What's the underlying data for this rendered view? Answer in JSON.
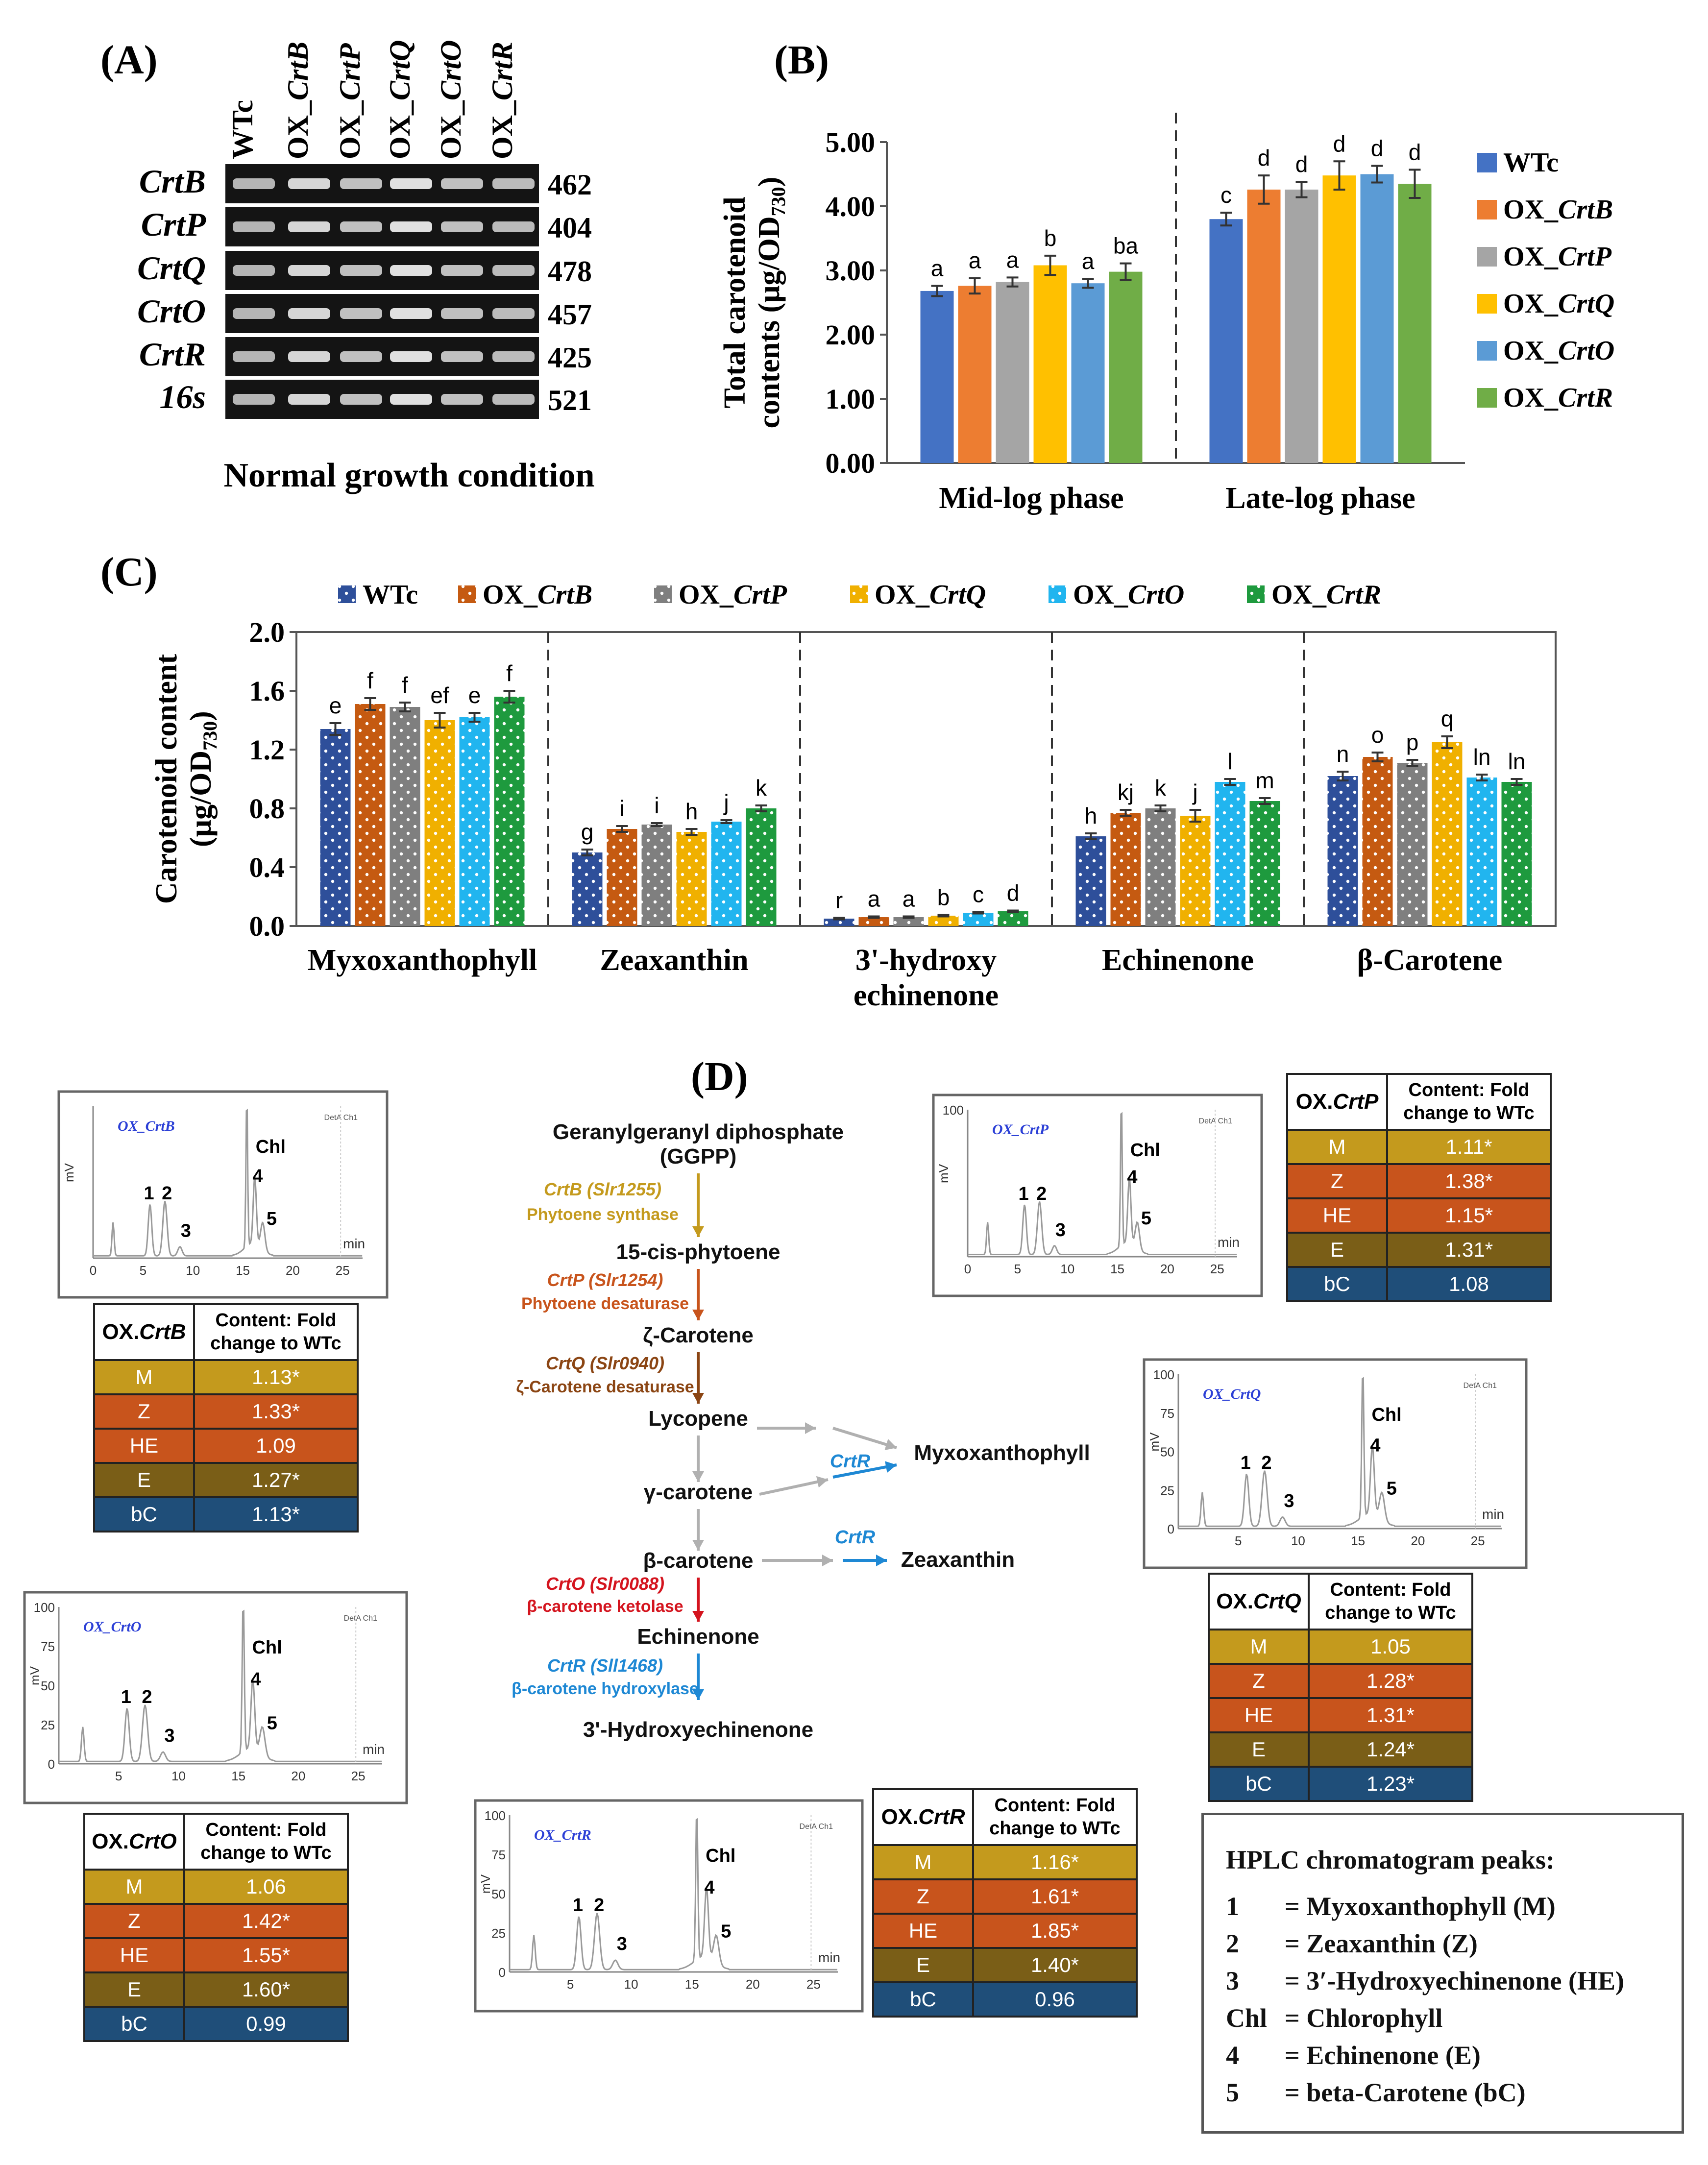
{
  "panel_labels": {
    "a": "(A)",
    "b": "(B)",
    "c": "(C)",
    "d": "(D)"
  },
  "colors": {
    "WTc": "#4472C4",
    "OX_CrtB": "#ED7D31",
    "OX_CrtP": "#A5A5A5",
    "OX_CrtQ": "#FFC000",
    "OX_CrtO": "#5B9BD5",
    "OX_CrtR": "#70AD47",
    "c_WTc": "#2E4F9A",
    "c_OX_CrtB": "#C55A11",
    "c_OX_CrtP": "#7F7F7F",
    "c_OX_CrtQ": "#F0B000",
    "c_OX_CrtO": "#21B5EF",
    "c_OX_CrtR": "#1E9A3E",
    "row_M": "#C49A1D",
    "row_Z": "#C8541C",
    "row_HE": "#C8541C",
    "row_E": "#7A5E17",
    "row_bC": "#1F4E79"
  },
  "panel_a": {
    "lane_labels": [
      {
        "prefix": "WTc",
        "gene": ""
      },
      {
        "prefix": "OX_",
        "gene": "CrtB"
      },
      {
        "prefix": "OX_",
        "gene": "CrtP"
      },
      {
        "prefix": "OX_",
        "gene": "CrtQ"
      },
      {
        "prefix": "OX_",
        "gene": "CrtO"
      },
      {
        "prefix": "OX_",
        "gene": "CrtR"
      }
    ],
    "genes": [
      {
        "name": "CrtB",
        "size": "462"
      },
      {
        "name": "CrtP",
        "size": "404"
      },
      {
        "name": "CrtQ",
        "size": "478"
      },
      {
        "name": "CrtO",
        "size": "457"
      },
      {
        "name": "CrtR",
        "size": "425"
      },
      {
        "name": "16s",
        "size": "521"
      }
    ],
    "caption": "Normal growth condition"
  },
  "legend_series": [
    {
      "key": "WTc",
      "prefix": "WTc",
      "gene": ""
    },
    {
      "key": "OX_CrtB",
      "prefix": "OX_",
      "gene": "CrtB"
    },
    {
      "key": "OX_CrtP",
      "prefix": "OX_",
      "gene": "CrtP"
    },
    {
      "key": "OX_CrtQ",
      "prefix": "OX_",
      "gene": "CrtQ"
    },
    {
      "key": "OX_CrtO",
      "prefix": "OX_",
      "gene": "CrtO"
    },
    {
      "key": "OX_CrtR",
      "prefix": "OX_",
      "gene": "CrtR"
    }
  ],
  "chart_data": [
    {
      "id": "B",
      "type": "bar",
      "ylabel_line1": "Total carotenoid",
      "ylabel_line2": "contents (μg/OD",
      "ylabel_sub": "730",
      "ylabel_end": ")",
      "ylim": [
        0,
        5
      ],
      "yticks": [
        "0.00",
        "1.00",
        "2.00",
        "3.00",
        "4.00",
        "5.00"
      ],
      "categories": [
        "Mid-log phase",
        "Late-log phase"
      ],
      "series": [
        {
          "name": "WTc",
          "values": [
            2.68,
            3.8
          ],
          "errors": [
            0.08,
            0.1
          ],
          "letters": [
            "a",
            "c"
          ]
        },
        {
          "name": "OX_CrtB",
          "values": [
            2.76,
            4.26
          ],
          "errors": [
            0.12,
            0.22
          ],
          "letters": [
            "a",
            "d"
          ]
        },
        {
          "name": "OX_CrtP",
          "values": [
            2.82,
            4.26
          ],
          "errors": [
            0.07,
            0.12
          ],
          "letters": [
            "a",
            "d"
          ]
        },
        {
          "name": "OX_CrtQ",
          "values": [
            3.08,
            4.48
          ],
          "errors": [
            0.15,
            0.22
          ],
          "letters": [
            "b",
            "d"
          ]
        },
        {
          "name": "OX_CrtO",
          "values": [
            2.8,
            4.5
          ],
          "errors": [
            0.07,
            0.13
          ],
          "letters": [
            "a",
            "d"
          ]
        },
        {
          "name": "OX_CrtR",
          "values": [
            2.98,
            4.35
          ],
          "errors": [
            0.13,
            0.22
          ],
          "letters": [
            "ba",
            "d"
          ]
        }
      ]
    },
    {
      "id": "C",
      "type": "bar",
      "ylabel_line1": "Carotenoid content",
      "ylabel_line2": "(μg/OD",
      "ylabel_sub": "730",
      "ylabel_end": ")",
      "ylim": [
        0,
        2
      ],
      "yticks": [
        "0.0",
        "0.4",
        "0.8",
        "1.2",
        "1.6",
        "2.0"
      ],
      "categories": [
        "Myxoxanthophyll",
        "Zeaxanthin",
        "3'-hydroxy echinenone",
        "Echinenone",
        "β-Carotene"
      ],
      "series": [
        {
          "name": "WTc",
          "values": [
            1.34,
            0.5,
            0.05,
            0.61,
            1.02
          ],
          "errors": [
            0.04,
            0.02,
            0.005,
            0.02,
            0.03
          ],
          "letters": [
            "e",
            "g",
            "r",
            "h",
            "n"
          ]
        },
        {
          "name": "OX_CrtB",
          "values": [
            1.51,
            0.66,
            0.06,
            0.77,
            1.15
          ],
          "errors": [
            0.04,
            0.02,
            0.005,
            0.02,
            0.03
          ],
          "letters": [
            "f",
            "i",
            "a",
            "kj",
            "o"
          ]
        },
        {
          "name": "OX_CrtP",
          "values": [
            1.49,
            0.69,
            0.06,
            0.8,
            1.11
          ],
          "errors": [
            0.03,
            0.01,
            0.005,
            0.02,
            0.02
          ],
          "letters": [
            "f",
            "i",
            "a",
            "k",
            "p"
          ]
        },
        {
          "name": "OX_CrtQ",
          "values": [
            1.4,
            0.64,
            0.07,
            0.75,
            1.25
          ],
          "errors": [
            0.05,
            0.02,
            0.005,
            0.04,
            0.04
          ],
          "letters": [
            "ef",
            "h",
            "b",
            "j",
            "q"
          ]
        },
        {
          "name": "OX_CrtO",
          "values": [
            1.42,
            0.71,
            0.09,
            0.98,
            1.01
          ],
          "errors": [
            0.03,
            0.01,
            0.005,
            0.02,
            0.02
          ],
          "letters": [
            "e",
            "j",
            "c",
            "l",
            "ln"
          ]
        },
        {
          "name": "OX_CrtR",
          "values": [
            1.56,
            0.8,
            0.1,
            0.85,
            0.98
          ],
          "errors": [
            0.04,
            0.02,
            0.005,
            0.02,
            0.02
          ],
          "letters": [
            "f",
            "k",
            "d",
            "m",
            "ln"
          ]
        }
      ]
    }
  ],
  "panel_d": {
    "pathway": [
      {
        "id": "ggpp1",
        "text": "Geranylgeranyl diphosphate"
      },
      {
        "id": "ggpp2",
        "text": "(GGPP)"
      },
      {
        "id": "e1a",
        "text": "CrtB (Slr1255)"
      },
      {
        "id": "e1b",
        "text": "Phytoene synthase"
      },
      {
        "id": "p1",
        "text": "15-cis-phytoene"
      },
      {
        "id": "e2a",
        "text": "CrtP (Slr1254)"
      },
      {
        "id": "e2b",
        "text": "Phytoene desaturase"
      },
      {
        "id": "p2",
        "text": "ζ-Carotene"
      },
      {
        "id": "e3a",
        "text": "CrtQ (Slr0940)"
      },
      {
        "id": "e3b",
        "text": "ζ-Carotene desaturase"
      },
      {
        "id": "p3",
        "text": "Lycopene"
      },
      {
        "id": "p4",
        "text": "γ-carotene"
      },
      {
        "id": "p5",
        "text": "β-carotene"
      },
      {
        "id": "myxo",
        "text": "Myxoxanthophyll"
      },
      {
        "id": "zea",
        "text": "Zeaxanthin"
      },
      {
        "id": "crtr1",
        "text": "CrtR"
      },
      {
        "id": "crtr2",
        "text": "CrtR"
      },
      {
        "id": "e4a",
        "text": "CrtO (Slr0088)"
      },
      {
        "id": "e4b",
        "text": "β-carotene ketolase"
      },
      {
        "id": "p6",
        "text": "Echinenone"
      },
      {
        "id": "e5a",
        "text": "CrtR (Sll1468)"
      },
      {
        "id": "e5b",
        "text": "β-carotene hydroxylase"
      },
      {
        "id": "p7",
        "text": "3'-Hydroxyechinenone"
      }
    ],
    "chrom_common": {
      "chl": "Chl",
      "detector": "DetA Ch1",
      "unit_y": "mV",
      "unit_x": "min",
      "peaks": [
        "1",
        "2",
        "3",
        "4",
        "5"
      ]
    },
    "chromatograms": [
      {
        "id": "crtB",
        "label": "OX_CrtB",
        "yticks": [],
        "xticks": [
          "0",
          "5",
          "10",
          "15",
          "20",
          "25"
        ]
      },
      {
        "id": "crtP",
        "label": "OX_CrtP",
        "yticks": [
          "100"
        ],
        "xticks": [
          "0",
          "5",
          "10",
          "15",
          "20",
          "25"
        ]
      },
      {
        "id": "crtQ",
        "label": "OX_CrtQ",
        "yticks": [
          "100",
          "75",
          "50",
          "25",
          "0"
        ],
        "xticks": [
          "5",
          "10",
          "15",
          "20",
          "25"
        ]
      },
      {
        "id": "crtO",
        "label": "OX_CrtO",
        "yticks": [
          "100",
          "75",
          "50",
          "25",
          "0"
        ],
        "xticks": [
          "5",
          "10",
          "15",
          "20",
          "25"
        ]
      },
      {
        "id": "crtR",
        "label": "OX_CrtR",
        "yticks": [
          "100",
          "75",
          "50",
          "25",
          "0"
        ],
        "xticks": [
          "5",
          "10",
          "15",
          "20",
          "25"
        ]
      }
    ],
    "table_header": "Content: Fold change to WTc",
    "tables": {
      "crtB": {
        "name_prefix": "OX.",
        "name_gene": "CrtB",
        "rows": [
          {
            "k": "M",
            "v": "1.13*"
          },
          {
            "k": "Z",
            "v": "1.33*"
          },
          {
            "k": "HE",
            "v": "1.09"
          },
          {
            "k": "E",
            "v": "1.27*"
          },
          {
            "k": "bC",
            "v": "1.13*"
          }
        ]
      },
      "crtP": {
        "name_prefix": "OX.",
        "name_gene": "CrtP",
        "rows": [
          {
            "k": "M",
            "v": "1.11*"
          },
          {
            "k": "Z",
            "v": "1.38*"
          },
          {
            "k": "HE",
            "v": "1.15*"
          },
          {
            "k": "E",
            "v": "1.31*"
          },
          {
            "k": "bC",
            "v": "1.08"
          }
        ]
      },
      "crtQ": {
        "name_prefix": "OX.",
        "name_gene": "CrtQ",
        "rows": [
          {
            "k": "M",
            "v": "1.05"
          },
          {
            "k": "Z",
            "v": "1.28*"
          },
          {
            "k": "HE",
            "v": "1.31*"
          },
          {
            "k": "E",
            "v": "1.24*"
          },
          {
            "k": "bC",
            "v": "1.23*"
          }
        ]
      },
      "crtO": {
        "name_prefix": "OX.",
        "name_gene": "CrtO",
        "rows": [
          {
            "k": "M",
            "v": "1.06"
          },
          {
            "k": "Z",
            "v": "1.42*"
          },
          {
            "k": "HE",
            "v": "1.55*"
          },
          {
            "k": "E",
            "v": "1.60*"
          },
          {
            "k": "bC",
            "v": "0.99"
          }
        ]
      },
      "crtR": {
        "name_prefix": "OX.",
        "name_gene": "CrtR",
        "rows": [
          {
            "k": "M",
            "v": "1.16*"
          },
          {
            "k": "Z",
            "v": "1.61*"
          },
          {
            "k": "HE",
            "v": "1.85*"
          },
          {
            "k": "E",
            "v": "1.40*"
          },
          {
            "k": "bC",
            "v": "0.96"
          }
        ]
      }
    },
    "peak_legend": {
      "title": "HPLC chromatogram peaks:",
      "items": [
        {
          "k": "1",
          "v": "= Myxoxanthophyll (M)"
        },
        {
          "k": "2",
          "v": "= Zeaxanthin (Z)"
        },
        {
          "k": "3",
          "v": "= 3′-Hydroxyechinenone (HE)"
        },
        {
          "k": "Chl",
          "v": "= Chlorophyll"
        },
        {
          "k": "4",
          "v": "= Echinenone (E)"
        },
        {
          "k": "5",
          "v": "= beta-Carotene (bC)"
        }
      ]
    }
  }
}
